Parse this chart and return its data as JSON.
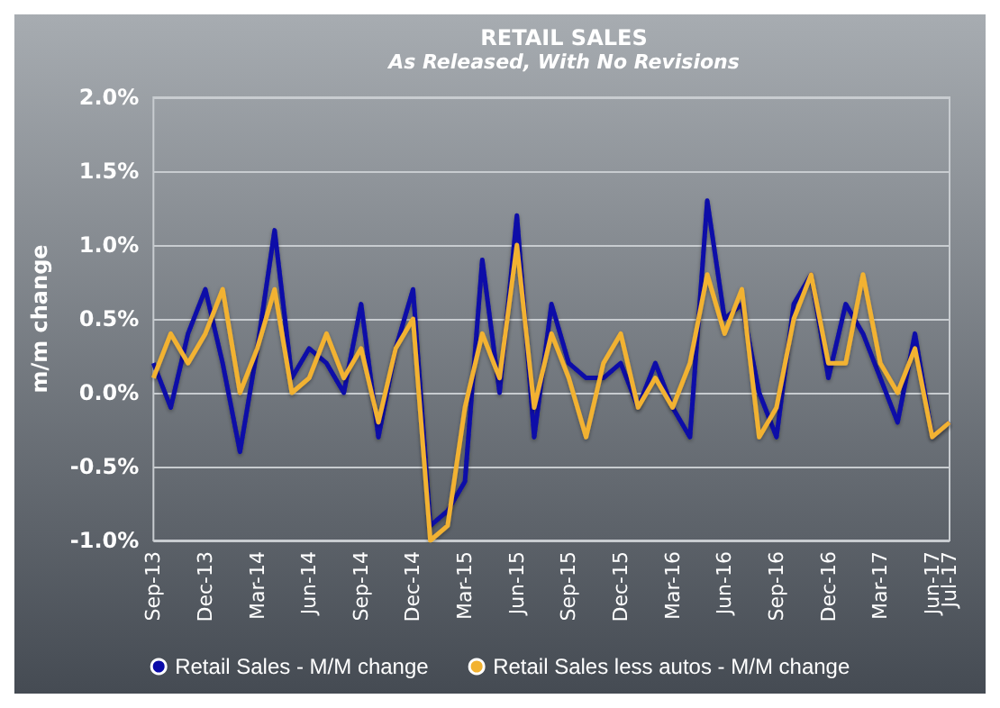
{
  "chart_data": {
    "type": "line",
    "title": "RETAIL SALES",
    "subtitle": "As Released, With No Revisions",
    "ylabel": "m/m change",
    "categories": [
      "Sep-13",
      null,
      null,
      "Dec-13",
      null,
      null,
      "Mar-14",
      null,
      null,
      "Jun-14",
      null,
      null,
      "Sep-14",
      null,
      null,
      "Dec-14",
      null,
      null,
      "Mar-15",
      null,
      null,
      "Jun-15",
      null,
      null,
      "Sep-15",
      null,
      null,
      "Dec-15",
      null,
      null,
      "Mar-16",
      null,
      null,
      "Jun-16",
      null,
      null,
      "Sep-16",
      null,
      null,
      "Dec-16",
      null,
      null,
      "Mar-17",
      null,
      null,
      "Jun-17",
      "Jul-17"
    ],
    "series": [
      {
        "name": "Retail Sales - M/M change",
        "color": "#0a0aa8",
        "values": [
          0.2,
          -0.1,
          0.4,
          0.7,
          0.2,
          -0.4,
          0.3,
          1.1,
          0.1,
          0.3,
          0.2,
          0.0,
          0.6,
          -0.3,
          0.3,
          0.7,
          -0.9,
          -0.8,
          -0.6,
          0.9,
          0.0,
          1.2,
          -0.3,
          0.6,
          0.2,
          0.1,
          0.1,
          0.2,
          -0.1,
          0.2,
          -0.1,
          -0.3,
          1.3,
          0.5,
          0.6,
          0.0,
          -0.3,
          0.6,
          0.8,
          0.1,
          0.6,
          0.4,
          0.1,
          -0.2,
          0.4,
          -0.3,
          -0.2
        ]
      },
      {
        "name": "Retail Sales less autos - M/M change",
        "color": "#f2b230",
        "values": [
          0.1,
          0.4,
          0.2,
          0.4,
          0.7,
          0.0,
          0.3,
          0.7,
          0.0,
          0.1,
          0.4,
          0.1,
          0.3,
          -0.2,
          0.3,
          0.5,
          -1.0,
          -0.9,
          -0.1,
          0.4,
          0.1,
          1.0,
          -0.1,
          0.4,
          0.1,
          -0.3,
          0.2,
          0.4,
          -0.1,
          0.1,
          -0.1,
          0.2,
          0.8,
          0.4,
          0.7,
          -0.3,
          -0.1,
          0.5,
          0.8,
          0.2,
          0.2,
          0.8,
          0.2,
          0.0,
          0.3,
          -0.3,
          -0.2
        ]
      }
    ],
    "ylim": [
      -1,
      2
    ],
    "yticks": [
      {
        "value": -1,
        "label": "-1.0%"
      },
      {
        "value": -0.5,
        "label": "-0.5%"
      },
      {
        "value": 0,
        "label": "0.0%"
      },
      {
        "value": 0.5,
        "label": "0.5%"
      },
      {
        "value": 1,
        "label": "1.0%"
      },
      {
        "value": 1.5,
        "label": "1.5%"
      },
      {
        "value": 2,
        "label": "2.0%"
      }
    ],
    "grid": "y",
    "legend": "bottom",
    "marker": "none",
    "line_style": "solid"
  }
}
